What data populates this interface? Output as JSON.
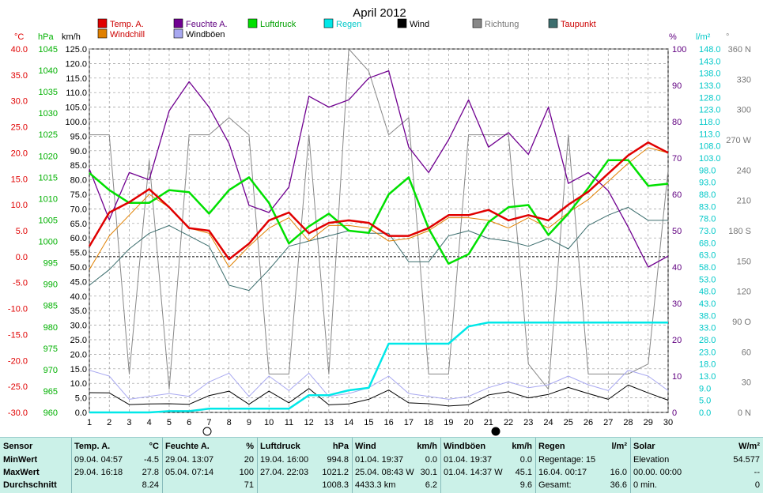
{
  "title": "April 2012",
  "legend": [
    {
      "label": "Temp. A.",
      "color": "#e00000",
      "text_color": "#cc0000"
    },
    {
      "label": "Feuchte A.",
      "color": "#700090",
      "text_color": "#600080"
    },
    {
      "label": "Luftdruck",
      "color": "#00e000",
      "text_color": "#00a000"
    },
    {
      "label": "Regen",
      "color": "#00e8e8",
      "text_color": "#00c8c8"
    },
    {
      "label": "Wind",
      "color": "#000000",
      "text_color": "#000000"
    },
    {
      "label": "Richtung",
      "color": "#888888",
      "text_color": "#777777"
    },
    {
      "label": "Taupunkt",
      "color": "#3c6e6e",
      "text_color": "#cc0000"
    },
    {
      "label": "Windchill",
      "color": "#e08000",
      "text_color": "#cc0000"
    },
    {
      "label": "Windböen",
      "color": "#a8a8f0",
      "text_color": "#000000"
    }
  ],
  "axis_units": {
    "temp": "°C",
    "pressure": "hPa",
    "wind": "km/h",
    "humidity": "%",
    "rain": "l/m²",
    "direction": "°"
  },
  "chart_data": {
    "type": "line",
    "x": [
      1,
      2,
      3,
      4,
      5,
      6,
      7,
      8,
      9,
      10,
      11,
      12,
      13,
      14,
      15,
      16,
      17,
      18,
      19,
      20,
      21,
      22,
      23,
      24,
      25,
      26,
      27,
      28,
      29,
      30
    ],
    "axes": {
      "temp": {
        "min": -30,
        "max": 40,
        "step": 5,
        "ticks": [
          "40.0",
          "35.0",
          "30.0",
          "25.0",
          "20.0",
          "15.0",
          "10.0",
          "5.0",
          "0.0",
          "-5.0",
          "-10.0",
          "-15.0",
          "-20.0",
          "-25.0",
          "-30.0"
        ]
      },
      "pressure": {
        "min": 960,
        "max": 1045,
        "step": 5
      },
      "wind": {
        "min": 0,
        "max": 125,
        "step": 5
      },
      "humidity": {
        "min": 0,
        "max": 100,
        "step": 10
      },
      "rain": {
        "min": 0,
        "max": 148,
        "step": 5,
        "ticks": [
          "148.0",
          "143.0",
          "138.0",
          "133.0",
          "128.0",
          "123.0",
          "118.0",
          "113.0",
          "108.0",
          "103.0",
          "98.0",
          "93.0",
          "88.0",
          "83.0",
          "78.0",
          "73.0",
          "68.0",
          "63.0",
          "58.0",
          "53.0",
          "48.0",
          "43.0",
          "38.0",
          "33.0",
          "28.0",
          "23.0",
          "18.0",
          "13.0",
          "9.0",
          "5.0",
          "0.0"
        ]
      },
      "direction": {
        "ticks": [
          {
            "v": 360,
            "t": "360 N"
          },
          {
            "v": 330,
            "t": "330"
          },
          {
            "v": 300,
            "t": "300"
          },
          {
            "v": 270,
            "t": "270 W"
          },
          {
            "v": 240,
            "t": "240"
          },
          {
            "v": 210,
            "t": "210"
          },
          {
            "v": 180,
            "t": "180 S"
          },
          {
            "v": 150,
            "t": "150"
          },
          {
            "v": 120,
            "t": "120"
          },
          {
            "v": 90,
            "t": "90 O"
          },
          {
            "v": 60,
            "t": "60"
          },
          {
            "v": 30,
            "t": "30"
          },
          {
            "v": 0,
            "t": "0 N"
          }
        ]
      }
    },
    "series": {
      "temp": [
        2.0,
        8.5,
        10.5,
        13.0,
        9.5,
        5.5,
        5.0,
        -0.5,
        2.5,
        7.0,
        8.5,
        4.5,
        6.5,
        7.0,
        6.5,
        4.0,
        4.0,
        5.5,
        8.0,
        8.0,
        9.0,
        7.0,
        8.0,
        7.0,
        10.0,
        12.5,
        16.0,
        19.5,
        22.0,
        20.0
      ],
      "windchill": [
        -2.5,
        4.0,
        8.0,
        12.0,
        9.5,
        5.5,
        4.5,
        -2.0,
        2.0,
        5.5,
        7.5,
        3.0,
        6.0,
        6.0,
        5.5,
        3.0,
        3.5,
        5.0,
        7.5,
        7.5,
        7.0,
        5.5,
        7.5,
        5.5,
        8.5,
        11.0,
        14.5,
        18.0,
        21.0,
        20.0
      ],
      "dewpoint": [
        -5.5,
        -2.5,
        1.5,
        4.5,
        6.0,
        4.0,
        2.0,
        -5.5,
        -6.5,
        -2.5,
        2.0,
        3.0,
        4.0,
        5.0,
        4.5,
        4.5,
        -1.0,
        -1.0,
        4.0,
        5.0,
        3.5,
        3.0,
        2.0,
        3.5,
        1.5,
        6.0,
        8.0,
        9.5,
        7.0,
        7.0
      ],
      "pressure": [
        1016.0,
        1012.0,
        1009.0,
        1009.0,
        1012.0,
        1011.5,
        1006.5,
        1012.0,
        1015.0,
        1009.0,
        999.5,
        1003.5,
        1006.5,
        1002.5,
        1002.0,
        1011.0,
        1015.0,
        1003.0,
        994.8,
        997.0,
        1004.5,
        1008.0,
        1008.5,
        1001.5,
        1006.5,
        1012.5,
        1019.0,
        1019.0,
        1013.0,
        1013.5
      ],
      "humidity": [
        67,
        53,
        66,
        64,
        83,
        91,
        84,
        74,
        57,
        55,
        62,
        87,
        84,
        86,
        92,
        94,
        73,
        66,
        75,
        86,
        73,
        77,
        71,
        84,
        63,
        66,
        61,
        51,
        40,
        43
      ],
      "wind": [
        6.8,
        6.7,
        2.7,
        2.9,
        3.0,
        2.8,
        5.8,
        7.3,
        2.8,
        7.3,
        3.3,
        8.2,
        2.6,
        2.9,
        4.5,
        7.7,
        3.3,
        3.0,
        2.2,
        2.6,
        6.0,
        7.1,
        5.0,
        6.2,
        8.6,
        6.5,
        4.5,
        9.4,
        6.7,
        4.2
      ],
      "gusts": [
        14.5,
        12.5,
        4.5,
        5.5,
        6.5,
        5.5,
        10.5,
        13.5,
        5.5,
        12.5,
        7.5,
        13.5,
        5.5,
        6.5,
        8.5,
        12.5,
        6.5,
        5.5,
        4.5,
        5.5,
        8.5,
        10.5,
        8.5,
        9.5,
        12.5,
        9.5,
        7.5,
        14.5,
        12.5,
        7.5
      ],
      "direction": [
        275,
        275,
        38,
        250,
        23,
        275,
        275,
        292,
        275,
        38,
        38,
        275,
        38,
        360,
        338,
        275,
        292,
        38,
        38,
        275,
        275,
        275,
        48,
        23,
        275,
        38,
        38,
        38,
        48,
        240
      ],
      "rain": [
        0,
        0,
        0,
        0,
        0.5,
        0.5,
        1.5,
        1.5,
        1.5,
        1.5,
        1.5,
        7,
        7,
        9,
        10,
        28,
        28,
        28,
        28,
        35,
        36.6,
        36.6,
        36.6,
        36.6,
        36.6,
        36.6,
        36.6,
        36.6,
        36.6,
        36.6
      ]
    }
  },
  "stats": {
    "row_labels": [
      "Sensor",
      "MinWert",
      "MaxWert",
      "Durchschnitt"
    ],
    "columns": [
      {
        "title": "Temp. A.",
        "unit": "°C",
        "min": {
          "when": "09.04.   04:57",
          "val": "-4.5"
        },
        "max": {
          "when": "29.04.   16:18",
          "val": "27.8"
        },
        "avg": {
          "when": "",
          "val": "8.24"
        }
      },
      {
        "title": "Feuchte A.",
        "unit": "%",
        "min": {
          "when": "29.04.   13:07",
          "val": "20"
        },
        "max": {
          "when": "05.04.   07:14",
          "val": "100"
        },
        "avg": {
          "when": "",
          "val": "71"
        }
      },
      {
        "title": "Luftdruck",
        "unit": "hPa",
        "min": {
          "when": "19.04.   16:00",
          "val": "994.8"
        },
        "max": {
          "when": "27.04.   22:03",
          "val": "1021.2"
        },
        "avg": {
          "when": "",
          "val": "1008.3"
        }
      },
      {
        "title": "Wind",
        "unit": "km/h",
        "min": {
          "when": "01.04.   19:37",
          "val": "0.0"
        },
        "max": {
          "when": "25.04.   08:43  W",
          "val": "30.1"
        },
        "avg": {
          "when": "4433.3 km",
          "val": "6.2"
        }
      },
      {
        "title": "Windböen",
        "unit": "km/h",
        "min": {
          "when": "01.04.   19:37",
          "val": "0.0"
        },
        "max": {
          "when": "01.04.   14:37  W",
          "val": "45.1"
        },
        "avg": {
          "when": "",
          "val": "9.6"
        }
      },
      {
        "title": "Regen",
        "unit": "l/m²",
        "min": {
          "when": "Regentage: 15",
          "val": ""
        },
        "max": {
          "when": "16.04.   00:17",
          "val": "16.0"
        },
        "avg": {
          "when": "Gesamt:",
          "val": "36.6"
        }
      },
      {
        "title": "Solar",
        "unit": "W/m²",
        "min": {
          "when": "Elevation",
          "val": "54.577"
        },
        "max": {
          "when": "00.00.   00:00",
          "val": "--"
        },
        "avg": {
          "when": "0 min.",
          "val": "0"
        }
      }
    ]
  }
}
